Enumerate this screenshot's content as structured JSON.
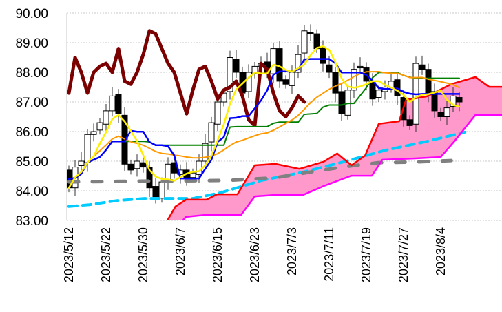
{
  "chart_data": {
    "type": "candlestick",
    "title": "",
    "xlabel": "",
    "ylabel": "",
    "ylim": [
      83,
      90
    ],
    "grid": true,
    "y_ticks": [
      "83.00",
      "84.00",
      "85.00",
      "86.00",
      "87.00",
      "88.00",
      "89.00",
      "90.00"
    ],
    "x_tick_labels": [
      {
        "index": 0,
        "label": "2023/5/12"
      },
      {
        "index": 6,
        "label": "2023/5/22"
      },
      {
        "index": 12,
        "label": "2023/5/30"
      },
      {
        "index": 18,
        "label": "2023/6/7"
      },
      {
        "index": 24,
        "label": "2023/6/15"
      },
      {
        "index": 30,
        "label": "2023/6/23"
      },
      {
        "index": 36,
        "label": "2023/7/3"
      },
      {
        "index": 42,
        "label": "2023/7/11"
      },
      {
        "index": 48,
        "label": "2023/7/19"
      },
      {
        "index": 54,
        "label": "2023/7/27"
      },
      {
        "index": 60,
        "label": "2023/8/4"
      }
    ],
    "closes": [
      84.1,
      84.8,
      85.0,
      85.9,
      86.0,
      86.3,
      86.7,
      87.2,
      86.6,
      84.9,
      84.7,
      85.0,
      84.8,
      84.1,
      83.8,
      84.3,
      84.9,
      84.6,
      84.7,
      84.4,
      84.6,
      85.0,
      85.6,
      86.3,
      87.0,
      87.3,
      88.5,
      88.0,
      87.3,
      88.0,
      88.2,
      88.3,
      88.0,
      88.8,
      87.7,
      87.6,
      88.0,
      88.6,
      89.4,
      89.3,
      88.8,
      88.3,
      88.0,
      87.3,
      86.6,
      87.4,
      88.1,
      88.2,
      87.7,
      87.1,
      87.4,
      87.5,
      87.7,
      87.2,
      86.4,
      86.2,
      88.3,
      88.1,
      87.3,
      86.7,
      86.5,
      86.8,
      87.2,
      87.0
    ],
    "first_open": 84.7,
    "series": [
      {
        "name": "5-day MA",
        "color": "#ffee00",
        "method": "sma5"
      },
      {
        "name": "25-day MA",
        "color": "#ff9900",
        "method": "sma25"
      },
      {
        "name": "Tenkan-sen",
        "color": "#0000ff",
        "method": "tenkan9"
      },
      {
        "name": "Kijun-sen",
        "color": "#008000",
        "method": "kijun26"
      },
      {
        "name": "Chikou span",
        "color": "#7b0000",
        "method": "lag25"
      },
      {
        "name": "Senkou span A",
        "color": "#ff0000",
        "points": [
          [
            15.9,
            83.0
          ],
          [
            17.2,
            83.47
          ],
          [
            18.9,
            83.7
          ],
          [
            22.2,
            83.7
          ],
          [
            23.9,
            83.88
          ],
          [
            27.2,
            83.88
          ],
          [
            30,
            84.86
          ],
          [
            33.3,
            84.91
          ],
          [
            37.2,
            84.74
          ],
          [
            41.1,
            84.98
          ],
          [
            43.3,
            85.26
          ],
          [
            45.6,
            84.86
          ],
          [
            47.8,
            85.19
          ],
          [
            50,
            86.26
          ],
          [
            53.3,
            86.35
          ],
          [
            54.4,
            87.07
          ],
          [
            57.8,
            87.19
          ],
          [
            61.7,
            87.6
          ],
          [
            65.6,
            87.84
          ],
          [
            67.8,
            87.51
          ],
          [
            70,
            87.51
          ]
        ]
      },
      {
        "name": "Senkou span B",
        "color": "#ff00ff",
        "points": [
          [
            16.4,
            82.55
          ],
          [
            18.9,
            83.12
          ],
          [
            22.2,
            83.19
          ],
          [
            27.8,
            83.19
          ],
          [
            30,
            83.81
          ],
          [
            33.3,
            83.86
          ],
          [
            37.8,
            83.86
          ],
          [
            41.1,
            84.16
          ],
          [
            45.6,
            84.51
          ],
          [
            48.9,
            84.51
          ],
          [
            50.6,
            85.05
          ],
          [
            55.6,
            85.09
          ],
          [
            60,
            85.14
          ],
          [
            62.2,
            85.67
          ],
          [
            65.6,
            86.56
          ],
          [
            70,
            86.56
          ]
        ]
      },
      {
        "name": "Long MA",
        "color": "#00ccff",
        "points": [
          [
            0,
            83.47
          ],
          [
            3.3,
            83.53
          ],
          [
            7.8,
            83.67
          ],
          [
            12.2,
            83.74
          ],
          [
            20,
            83.74
          ],
          [
            24.4,
            83.93
          ],
          [
            31.1,
            84.35
          ],
          [
            37.8,
            84.63
          ],
          [
            44.4,
            84.98
          ],
          [
            51.1,
            85.37
          ],
          [
            57.8,
            85.67
          ],
          [
            63.9,
            85.98
          ]
        ]
      },
      {
        "name": "Lagged MA",
        "color": "#808080",
        "points": [
          [
            0,
            84.3
          ],
          [
            14,
            84.33
          ],
          [
            25.6,
            84.35
          ],
          [
            33.3,
            84.44
          ],
          [
            38.9,
            84.63
          ],
          [
            44.4,
            84.81
          ],
          [
            50,
            84.95
          ],
          [
            55.6,
            84.97
          ],
          [
            61.7,
            85.02
          ]
        ]
      }
    ],
    "cloud_fill": "#ff99cc"
  }
}
